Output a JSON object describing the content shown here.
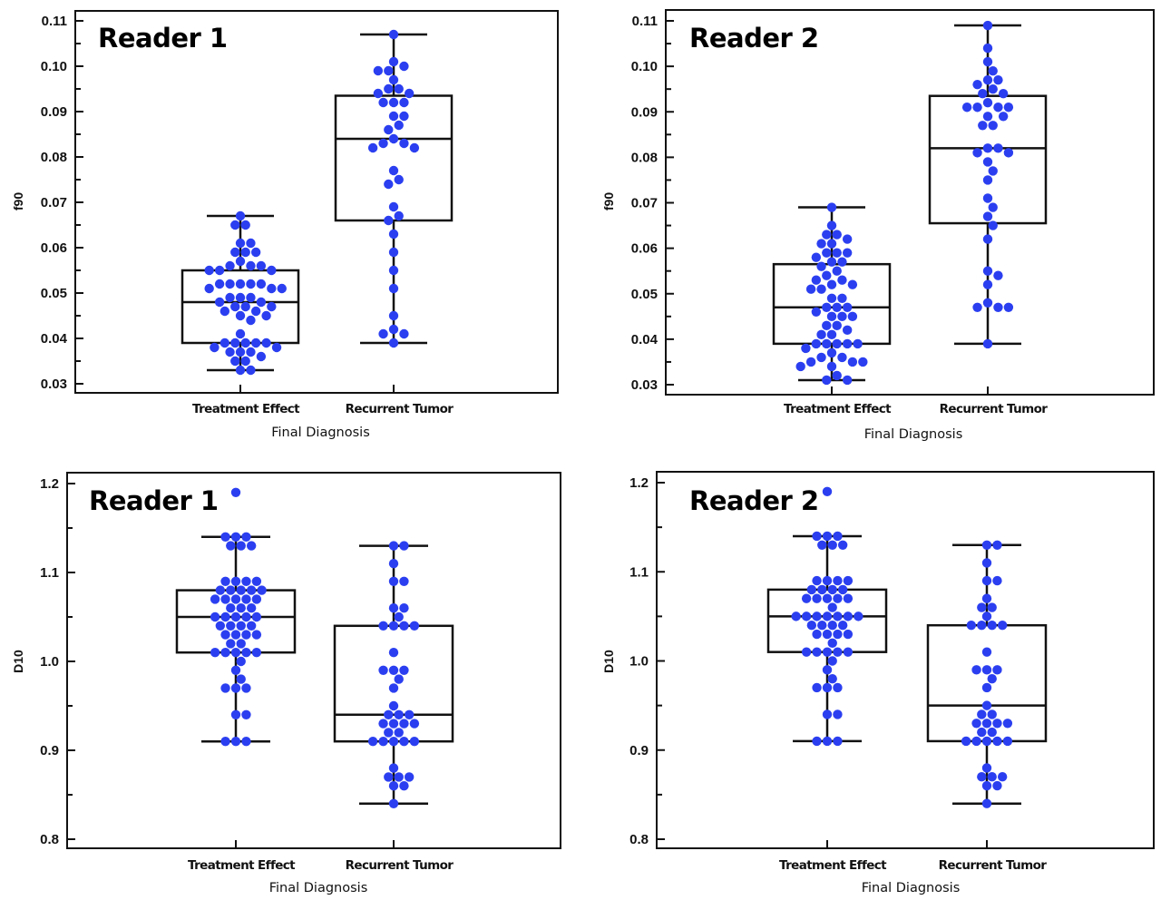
{
  "chart_data": [
    {
      "type": "box",
      "title": "Reader 1",
      "xlabel": "Final Diagnosis",
      "ylabel": "f90",
      "ylim": [
        0.028,
        0.112
      ],
      "yticks": [
        "0.03",
        "0.04",
        "0.05",
        "0.06",
        "0.07",
        "0.08",
        "0.09",
        "0.10",
        "0.11"
      ],
      "categories": [
        "Treatment Effect",
        "Recurrent Tumor"
      ],
      "series": [
        {
          "name": "Treatment Effect",
          "box": {
            "min": 0.033,
            "q1": 0.039,
            "median": 0.048,
            "q3": 0.055,
            "max": 0.067
          },
          "points": [
            0.067,
            0.065,
            0.065,
            0.061,
            0.061,
            0.059,
            0.059,
            0.059,
            0.057,
            0.056,
            0.056,
            0.056,
            0.055,
            0.055,
            0.055,
            0.052,
            0.052,
            0.052,
            0.052,
            0.052,
            0.051,
            0.051,
            0.051,
            0.049,
            0.049,
            0.049,
            0.048,
            0.048,
            0.047,
            0.047,
            0.047,
            0.046,
            0.046,
            0.045,
            0.045,
            0.044,
            0.041,
            0.039,
            0.039,
            0.039,
            0.039,
            0.039,
            0.038,
            0.038,
            0.037,
            0.037,
            0.037,
            0.036,
            0.035,
            0.035,
            0.033,
            0.033
          ]
        },
        {
          "name": "Recurrent Tumor",
          "box": {
            "min": 0.039,
            "q1": 0.066,
            "median": 0.084,
            "q3": 0.0935,
            "max": 0.107
          },
          "points": [
            0.107,
            0.101,
            0.1,
            0.099,
            0.099,
            0.097,
            0.095,
            0.095,
            0.094,
            0.094,
            0.092,
            0.092,
            0.092,
            0.089,
            0.089,
            0.087,
            0.086,
            0.084,
            0.083,
            0.083,
            0.082,
            0.082,
            0.077,
            0.075,
            0.074,
            0.069,
            0.067,
            0.066,
            0.063,
            0.059,
            0.055,
            0.051,
            0.045,
            0.042,
            0.041,
            0.041,
            0.039
          ]
        }
      ]
    },
    {
      "type": "box",
      "title": "Reader 2",
      "xlabel": "Final Diagnosis",
      "ylabel": "f90",
      "ylim": [
        0.028,
        0.112
      ],
      "yticks": [
        "0.03",
        "0.04",
        "0.05",
        "0.06",
        "0.07",
        "0.08",
        "0.09",
        "0.10",
        "0.11"
      ],
      "categories": [
        "Treatment Effect",
        "Recurrent Tumor"
      ],
      "series": [
        {
          "name": "Treatment Effect",
          "box": {
            "min": 0.031,
            "q1": 0.039,
            "median": 0.047,
            "q3": 0.0565,
            "max": 0.069
          },
          "points": [
            0.069,
            0.065,
            0.063,
            0.063,
            0.062,
            0.061,
            0.061,
            0.059,
            0.059,
            0.059,
            0.058,
            0.057,
            0.057,
            0.056,
            0.055,
            0.054,
            0.053,
            0.053,
            0.052,
            0.052,
            0.051,
            0.051,
            0.049,
            0.049,
            0.047,
            0.047,
            0.047,
            0.046,
            0.045,
            0.045,
            0.045,
            0.043,
            0.043,
            0.042,
            0.041,
            0.041,
            0.039,
            0.039,
            0.039,
            0.039,
            0.039,
            0.038,
            0.037,
            0.036,
            0.036,
            0.035,
            0.035,
            0.035,
            0.034,
            0.034,
            0.032,
            0.031,
            0.031
          ]
        },
        {
          "name": "Recurrent Tumor",
          "box": {
            "min": 0.039,
            "q1": 0.0655,
            "median": 0.082,
            "q3": 0.0935,
            "max": 0.109
          },
          "points": [
            0.109,
            0.104,
            0.101,
            0.099,
            0.097,
            0.097,
            0.096,
            0.095,
            0.094,
            0.094,
            0.092,
            0.091,
            0.091,
            0.091,
            0.091,
            0.089,
            0.089,
            0.087,
            0.087,
            0.082,
            0.082,
            0.081,
            0.081,
            0.079,
            0.077,
            0.075,
            0.071,
            0.069,
            0.067,
            0.065,
            0.062,
            0.055,
            0.054,
            0.052,
            0.048,
            0.047,
            0.047,
            0.047,
            0.039
          ]
        }
      ]
    },
    {
      "type": "box",
      "title": "Reader 1",
      "xlabel": "Final Diagnosis",
      "ylabel": "D10",
      "ylim": [
        0.79,
        1.21
      ],
      "yticks": [
        "0.8",
        "0.9",
        "1.0",
        "1.1",
        "1.2"
      ],
      "categories": [
        "Treatment Effect",
        "Recurrent Tumor"
      ],
      "series": [
        {
          "name": "Treatment Effect",
          "box": {
            "min": 0.91,
            "q1": 1.01,
            "median": 1.05,
            "q3": 1.08,
            "max": 1.14
          },
          "points": [
            1.19,
            1.14,
            1.14,
            1.14,
            1.13,
            1.13,
            1.13,
            1.09,
            1.09,
            1.09,
            1.09,
            1.08,
            1.08,
            1.08,
            1.08,
            1.08,
            1.07,
            1.07,
            1.07,
            1.07,
            1.07,
            1.06,
            1.06,
            1.06,
            1.05,
            1.05,
            1.05,
            1.05,
            1.05,
            1.04,
            1.04,
            1.04,
            1.04,
            1.03,
            1.03,
            1.03,
            1.03,
            1.02,
            1.02,
            1.01,
            1.01,
            1.01,
            1.01,
            1.01,
            1.0,
            0.99,
            0.98,
            0.97,
            0.97,
            0.97,
            0.94,
            0.94,
            0.91,
            0.91,
            0.91
          ]
        },
        {
          "name": "Recurrent Tumor",
          "box": {
            "min": 0.84,
            "q1": 0.91,
            "median": 0.94,
            "q3": 1.04,
            "max": 1.13
          },
          "points": [
            1.13,
            1.13,
            1.11,
            1.09,
            1.09,
            1.06,
            1.06,
            1.05,
            1.04,
            1.04,
            1.04,
            1.04,
            1.01,
            0.99,
            0.99,
            0.99,
            0.98,
            0.97,
            0.95,
            0.94,
            0.94,
            0.94,
            0.93,
            0.93,
            0.93,
            0.93,
            0.92,
            0.92,
            0.91,
            0.91,
            0.91,
            0.91,
            0.91,
            0.88,
            0.87,
            0.87,
            0.87,
            0.86,
            0.86,
            0.84
          ]
        }
      ]
    },
    {
      "type": "box",
      "title": "Reader 2",
      "xlabel": "Final Diagnosis",
      "ylabel": "D10",
      "ylim": [
        0.79,
        1.21
      ],
      "yticks": [
        "0.8",
        "0.9",
        "1.0",
        "1.1",
        "1.2"
      ],
      "categories": [
        "Treatment Effect",
        "Recurrent Tumor"
      ],
      "series": [
        {
          "name": "Treatment Effect",
          "box": {
            "min": 0.91,
            "q1": 1.01,
            "median": 1.05,
            "q3": 1.08,
            "max": 1.14
          },
          "points": [
            1.19,
            1.14,
            1.14,
            1.14,
            1.13,
            1.13,
            1.13,
            1.09,
            1.09,
            1.09,
            1.09,
            1.08,
            1.08,
            1.08,
            1.08,
            1.07,
            1.07,
            1.07,
            1.07,
            1.07,
            1.06,
            1.05,
            1.05,
            1.05,
            1.05,
            1.05,
            1.05,
            1.05,
            1.04,
            1.04,
            1.04,
            1.04,
            1.03,
            1.03,
            1.03,
            1.03,
            1.02,
            1.01,
            1.01,
            1.01,
            1.01,
            1.01,
            1.0,
            0.99,
            0.98,
            0.97,
            0.97,
            0.97,
            0.94,
            0.94,
            0.91,
            0.91,
            0.91
          ]
        },
        {
          "name": "Recurrent Tumor",
          "box": {
            "min": 0.84,
            "q1": 0.91,
            "median": 0.95,
            "q3": 1.04,
            "max": 1.13
          },
          "points": [
            1.13,
            1.13,
            1.11,
            1.09,
            1.09,
            1.07,
            1.06,
            1.06,
            1.05,
            1.04,
            1.04,
            1.04,
            1.04,
            1.01,
            0.99,
            0.99,
            0.99,
            0.98,
            0.97,
            0.95,
            0.94,
            0.94,
            0.93,
            0.93,
            0.93,
            0.93,
            0.92,
            0.92,
            0.91,
            0.91,
            0.91,
            0.91,
            0.91,
            0.88,
            0.87,
            0.87,
            0.87,
            0.86,
            0.86,
            0.84
          ]
        }
      ]
    }
  ],
  "style": {
    "point_color": "#2b3ff0",
    "line_color": "#111111"
  }
}
